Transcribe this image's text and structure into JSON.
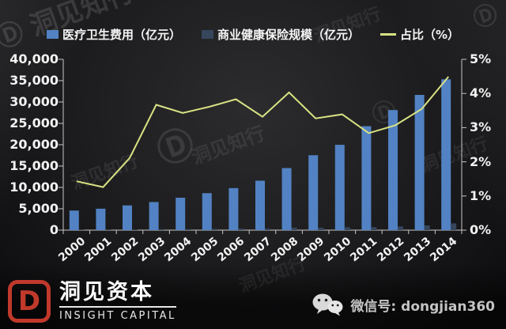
{
  "chart_data": {
    "type": "bar",
    "title": "",
    "grid": false,
    "legend_position": "top",
    "categories": [
      "2000",
      "2001",
      "2002",
      "2003",
      "2004",
      "2005",
      "2006",
      "2007",
      "2008",
      "2009",
      "2010",
      "2011",
      "2012",
      "2013",
      "2014"
    ],
    "series": [
      {
        "name": "医疗卫生费用（亿元）",
        "type": "bar",
        "axis": "left",
        "color": "#5282c3",
        "values": [
          4587,
          5026,
          5790,
          6584,
          7590,
          8660,
          9843,
          11574,
          14535,
          17542,
          19980,
          24346,
          28119,
          31669,
          35312
        ]
      },
      {
        "name": "商业健康保险规模（亿元）",
        "type": "bar",
        "axis": "left",
        "color": "#36475c",
        "values": [
          66,
          63,
          122,
          242,
          260,
          312,
          377,
          384,
          586,
          574,
          678,
          692,
          863,
          1124,
          1587
        ]
      },
      {
        "name": "占比（%）",
        "type": "line",
        "axis": "right",
        "color": "#d9e283",
        "values": [
          1.43,
          1.26,
          2.11,
          3.67,
          3.43,
          3.61,
          3.83,
          3.32,
          4.03,
          3.27,
          3.39,
          2.84,
          3.07,
          3.55,
          4.49
        ]
      }
    ],
    "left_axis": {
      "min": 0,
      "max": 40000,
      "step": 5000,
      "tick_labels": [
        "40,000",
        "35,000",
        "30,000",
        "25,000",
        "20,000",
        "15,000",
        "10,000",
        "5,000",
        "0"
      ]
    },
    "right_axis": {
      "min": 0,
      "max": 5,
      "step": 1,
      "tick_labels": [
        "5%",
        "4%",
        "3%",
        "2%",
        "1%",
        "0%"
      ]
    },
    "axis_color": "#c6c6c6"
  },
  "watermark": {
    "symbol": "Ⓓ",
    "text": "洞见知行"
  },
  "footer": {
    "logo_letter": "D",
    "brand_cn": "洞见资本",
    "brand_en": "INSIGHT CAPITAL",
    "wechat_label": "微信号: dongjian360",
    "brand_red": "#c0392b"
  }
}
